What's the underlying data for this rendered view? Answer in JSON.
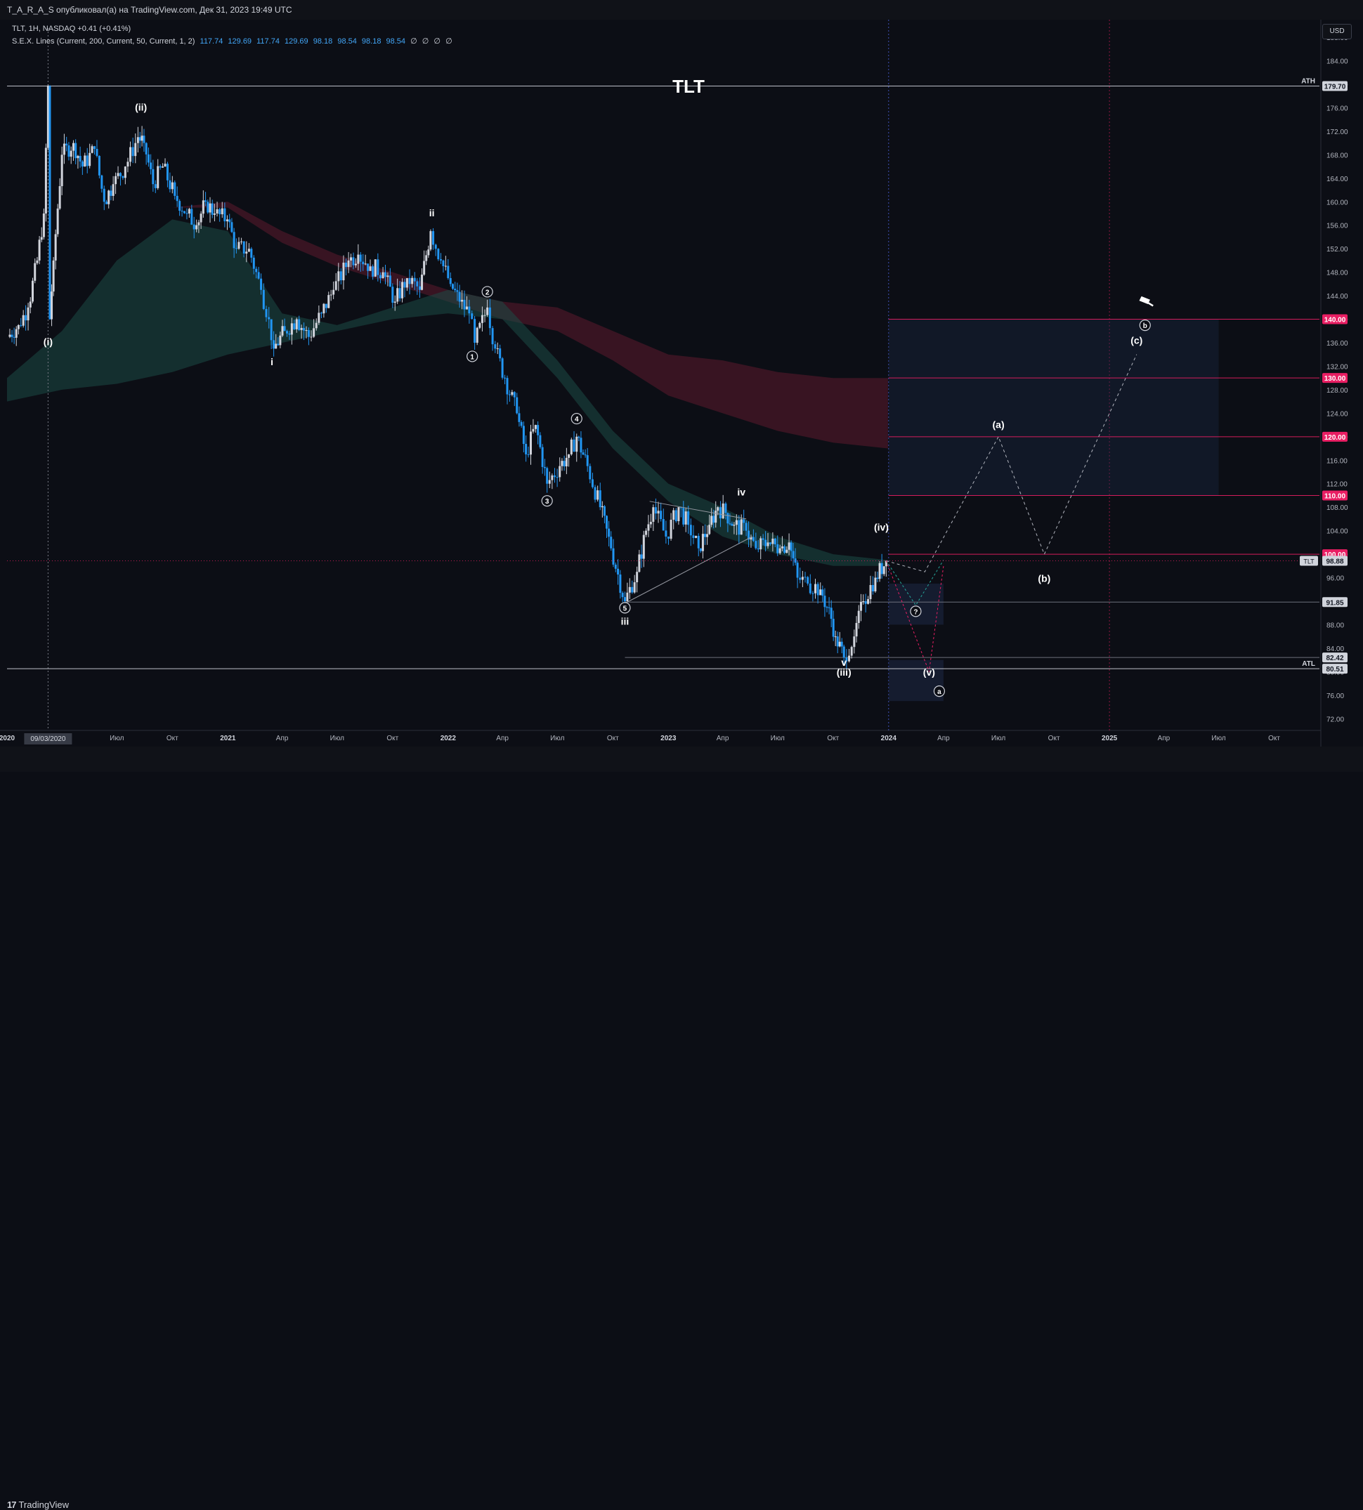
{
  "header": {
    "publish_line": "T_A_R_A_S опубликовал(а) на TradingView.com, Дек 31, 2023 19:49 UTC"
  },
  "legend": {
    "symbol_line": "TLT, 1H, NASDAQ",
    "change": "+0.41 (+0.41%)",
    "indicator_name": "S.E.X. Lines (Current, 200, Current, 50, Current, 1, 2)",
    "indicator_values": [
      "117.74",
      "129.69",
      "117.74",
      "129.69",
      "98.18",
      "98.54",
      "98.18",
      "98.54"
    ],
    "indicator_nulls": [
      "∅",
      "∅",
      "∅",
      "∅"
    ]
  },
  "currency": "USD",
  "footer": {
    "logo_mark": "17",
    "logo_text": "TradingView"
  },
  "colors": {
    "background": "#0c0e15",
    "bull": "#d1d4dc",
    "bear": "#2196f3",
    "accent_pink": "#e91e63",
    "band_green": "#1b4a45",
    "band_red": "#5c1a2e"
  },
  "chart_data": {
    "type": "candlestick",
    "title": "TLT",
    "ylim": [
      70,
      191
    ],
    "y_ticks": [
      "188.00",
      "184.00",
      "180.00",
      "176.00",
      "172.00",
      "168.00",
      "164.00",
      "160.00",
      "156.00",
      "152.00",
      "148.00",
      "144.00",
      "140.00",
      "136.00",
      "132.00",
      "128.00",
      "124.00",
      "120.00",
      "116.00",
      "112.00",
      "108.00",
      "104.00",
      "100.00",
      "96.00",
      "92.00",
      "88.00",
      "84.00",
      "80.00",
      "76.00",
      "72.00"
    ],
    "x_range": [
      "2020-01-01",
      "2025-12-15"
    ],
    "x_ticks": [
      {
        "date": "2020-01-01",
        "label": "2020",
        "bold": true
      },
      {
        "date": "2020-07-01",
        "label": "Июл"
      },
      {
        "date": "2020-10-01",
        "label": "Окт"
      },
      {
        "date": "2021-01-01",
        "label": "2021",
        "bold": true
      },
      {
        "date": "2021-04-01",
        "label": "Апр"
      },
      {
        "date": "2021-07-01",
        "label": "Июл"
      },
      {
        "date": "2021-10-01",
        "label": "Окт"
      },
      {
        "date": "2022-01-01",
        "label": "2022",
        "bold": true
      },
      {
        "date": "2022-04-01",
        "label": "Апр"
      },
      {
        "date": "2022-07-01",
        "label": "Июл"
      },
      {
        "date": "2022-10-01",
        "label": "Окт"
      },
      {
        "date": "2023-01-01",
        "label": "2023",
        "bold": true
      },
      {
        "date": "2023-04-01",
        "label": "Апр"
      },
      {
        "date": "2023-07-01",
        "label": "Июл"
      },
      {
        "date": "2023-10-01",
        "label": "Окт"
      },
      {
        "date": "2024-01-01",
        "label": "2024",
        "bold": true
      },
      {
        "date": "2024-04-01",
        "label": "Апр"
      },
      {
        "date": "2024-07-01",
        "label": "Июл"
      },
      {
        "date": "2024-10-01",
        "label": "Окт"
      },
      {
        "date": "2025-01-01",
        "label": "2025",
        "bold": true
      },
      {
        "date": "2025-04-01",
        "label": "Апр"
      },
      {
        "date": "2025-07-01",
        "label": "Июл"
      },
      {
        "date": "2025-10-01",
        "label": "Окт"
      }
    ],
    "crosshair_date": {
      "date": "2020-03-09",
      "label": "09/03/2020"
    },
    "price_path": [
      [
        "2020-01-02",
        137
      ],
      [
        "2020-01-20",
        139
      ],
      [
        "2020-02-05",
        142
      ],
      [
        "2020-02-20",
        150
      ],
      [
        "2020-03-02",
        158
      ],
      [
        "2020-03-09",
        179.7
      ],
      [
        "2020-03-12",
        140
      ],
      [
        "2020-03-18",
        150
      ],
      [
        "2020-04-01",
        168
      ],
      [
        "2020-04-20",
        170
      ],
      [
        "2020-05-05",
        166
      ],
      [
        "2020-05-25",
        169
      ],
      [
        "2020-06-10",
        160
      ],
      [
        "2020-06-25",
        163
      ],
      [
        "2020-07-15",
        166
      ],
      [
        "2020-08-05",
        171
      ],
      [
        "2020-08-15",
        170
      ],
      [
        "2020-08-30",
        163
      ],
      [
        "2020-09-15",
        166
      ],
      [
        "2020-10-05",
        161
      ],
      [
        "2020-10-25",
        158
      ],
      [
        "2020-11-10",
        156
      ],
      [
        "2020-11-25",
        160
      ],
      [
        "2020-12-10",
        158
      ],
      [
        "2020-12-31",
        157
      ],
      [
        "2021-01-15",
        152
      ],
      [
        "2021-02-05",
        152
      ],
      [
        "2021-02-25",
        145
      ],
      [
        "2021-03-10",
        140
      ],
      [
        "2021-03-18",
        135
      ],
      [
        "2021-04-05",
        138
      ],
      [
        "2021-04-25",
        140
      ],
      [
        "2021-05-15",
        137
      ],
      [
        "2021-06-05",
        141
      ],
      [
        "2021-06-25",
        145
      ],
      [
        "2021-07-20",
        150
      ],
      [
        "2021-08-05",
        151
      ],
      [
        "2021-08-25",
        149
      ],
      [
        "2021-09-15",
        148
      ],
      [
        "2021-10-05",
        143
      ],
      [
        "2021-10-25",
        147
      ],
      [
        "2021-11-15",
        145
      ],
      [
        "2021-12-03",
        155
      ],
      [
        "2021-12-20",
        150
      ],
      [
        "2022-01-05",
        146
      ],
      [
        "2022-01-20",
        143
      ],
      [
        "2022-02-05",
        141
      ],
      [
        "2022-02-14",
        136
      ],
      [
        "2022-03-07",
        142
      ],
      [
        "2022-03-20",
        135
      ],
      [
        "2022-04-05",
        130
      ],
      [
        "2022-04-25",
        124
      ],
      [
        "2022-05-10",
        117
      ],
      [
        "2022-05-26",
        122
      ],
      [
        "2022-06-14",
        112
      ],
      [
        "2022-07-05",
        115
      ],
      [
        "2022-07-20",
        117
      ],
      [
        "2022-08-02",
        120
      ],
      [
        "2022-08-20",
        115
      ],
      [
        "2022-09-10",
        108
      ],
      [
        "2022-09-28",
        101
      ],
      [
        "2022-10-21",
        92
      ],
      [
        "2022-11-10",
        97
      ],
      [
        "2022-11-25",
        104
      ],
      [
        "2022-12-07",
        108
      ],
      [
        "2022-12-28",
        103
      ],
      [
        "2023-01-18",
        108
      ],
      [
        "2023-02-03",
        105
      ],
      [
        "2023-02-20",
        101
      ],
      [
        "2023-03-10",
        105
      ],
      [
        "2023-03-24",
        108
      ],
      [
        "2023-04-06",
        107
      ],
      [
        "2023-04-20",
        105
      ],
      [
        "2023-05-10",
        104
      ],
      [
        "2023-05-26",
        101
      ],
      [
        "2023-06-15",
        102
      ],
      [
        "2023-07-05",
        101
      ],
      [
        "2023-07-20",
        102
      ],
      [
        "2023-08-03",
        96
      ],
      [
        "2023-08-20",
        95
      ],
      [
        "2023-09-10",
        94
      ],
      [
        "2023-09-28",
        89
      ],
      [
        "2023-10-05",
        86
      ],
      [
        "2023-10-19",
        82.42
      ],
      [
        "2023-11-05",
        86
      ],
      [
        "2023-11-20",
        92
      ],
      [
        "2023-12-10",
        96
      ],
      [
        "2023-12-28",
        98.88
      ]
    ],
    "band_green": {
      "dates": [
        "2020-01-01",
        "2020-04-01",
        "2020-07-01",
        "2020-10-01",
        "2021-01-01",
        "2021-04-01",
        "2021-07-01",
        "2021-10-01",
        "2022-01-01",
        "2022-04-01",
        "2022-07-01",
        "2022-10-01",
        "2023-01-01",
        "2023-04-01",
        "2023-07-01",
        "2023-10-01",
        "2023-12-31"
      ],
      "upper": [
        130,
        138,
        150,
        157,
        155,
        141,
        139,
        142,
        145,
        143,
        133,
        121,
        112,
        108,
        103,
        100,
        99
      ],
      "lower": [
        126,
        128,
        129,
        131,
        134,
        136,
        138,
        140,
        141,
        140,
        130,
        118,
        109,
        103,
        100,
        98,
        98
      ]
    },
    "band_red": {
      "dates": [
        "2020-01-01",
        "2020-10-01",
        "2021-01-01",
        "2021-04-01",
        "2021-07-01",
        "2021-10-01",
        "2022-01-01",
        "2022-04-01",
        "2022-07-01",
        "2022-10-01",
        "2023-01-01",
        "2023-04-01",
        "2023-07-01",
        "2023-10-01",
        "2023-12-31"
      ],
      "upper": [
        157,
        159,
        160,
        155,
        151,
        148,
        145,
        143,
        142,
        138,
        134,
        133,
        131,
        130,
        130
      ],
      "lower": [
        157,
        159,
        159,
        153,
        149,
        146,
        143,
        140,
        138,
        133,
        127,
        124,
        121,
        119,
        118
      ]
    },
    "levels": [
      {
        "price": 179.7,
        "label": "179.70",
        "tag": "ATH",
        "style": "white"
      },
      {
        "price": 140,
        "label": "140.00",
        "style": "pink"
      },
      {
        "price": 130,
        "label": "130.00",
        "style": "pink"
      },
      {
        "price": 120,
        "label": "120.00",
        "style": "pink"
      },
      {
        "price": 110,
        "label": "110.00",
        "style": "pink"
      },
      {
        "price": 100,
        "label": "100.00",
        "style": "pink"
      },
      {
        "price": 91.85,
        "label": "91.85",
        "style": "gray"
      },
      {
        "price": 82.42,
        "label": "82.42",
        "style": "gray"
      },
      {
        "price": 80.51,
        "label": "80.51",
        "tag": "ATL",
        "style": "white"
      }
    ],
    "last_price": {
      "price": 98.88,
      "label": "98.88",
      "symbol": "TLT"
    },
    "wave_labels": [
      {
        "date": "2020-03-09",
        "price": 135.6,
        "text": "(i)",
        "circled": false
      },
      {
        "date": "2020-08-10",
        "price": 175.5,
        "text": "(ii)",
        "circled": false
      },
      {
        "date": "2021-03-15",
        "price": 132.2,
        "text": "i",
        "circled": false
      },
      {
        "date": "2021-12-05",
        "price": 157.5,
        "text": "ii",
        "circled": false
      },
      {
        "date": "2022-02-10",
        "price": 133.2,
        "text": "1",
        "circled": true
      },
      {
        "date": "2022-03-07",
        "price": 144.2,
        "text": "2",
        "circled": true
      },
      {
        "date": "2022-06-14",
        "price": 108.6,
        "text": "3",
        "circled": true
      },
      {
        "date": "2022-08-02",
        "price": 122.6,
        "text": "4",
        "circled": true
      },
      {
        "date": "2022-10-21",
        "price": 90.4,
        "text": "5",
        "circled": true
      },
      {
        "date": "2022-10-21",
        "price": 88.0,
        "text": "iii",
        "circled": false
      },
      {
        "date": "2023-05-02",
        "price": 110.0,
        "text": "iv",
        "circled": false
      },
      {
        "date": "2023-10-19",
        "price": 81.0,
        "text": "v",
        "circled": false
      },
      {
        "date": "2023-10-19",
        "price": 79.3,
        "text": "(iii)",
        "circled": false
      },
      {
        "date": "2023-12-20",
        "price": 104.0,
        "text": "(iv)",
        "circled": false
      },
      {
        "date": "2024-03-08",
        "price": 79.3,
        "text": "(v)",
        "circled": false
      },
      {
        "date": "2024-03-25",
        "price": 76.2,
        "text": "a",
        "circled": true
      },
      {
        "date": "2024-02-15",
        "price": 89.8,
        "text": "?",
        "circled": true
      },
      {
        "date": "2024-07-01",
        "price": 121.5,
        "text": "(a)",
        "circled": false
      },
      {
        "date": "2024-09-15",
        "price": 95.3,
        "text": "(b)",
        "circled": false
      },
      {
        "date": "2025-02-15",
        "price": 135.8,
        "text": "(c)",
        "circled": false
      },
      {
        "date": "2025-03-01",
        "price": 138.5,
        "text": "b",
        "circled": true
      }
    ]
  }
}
